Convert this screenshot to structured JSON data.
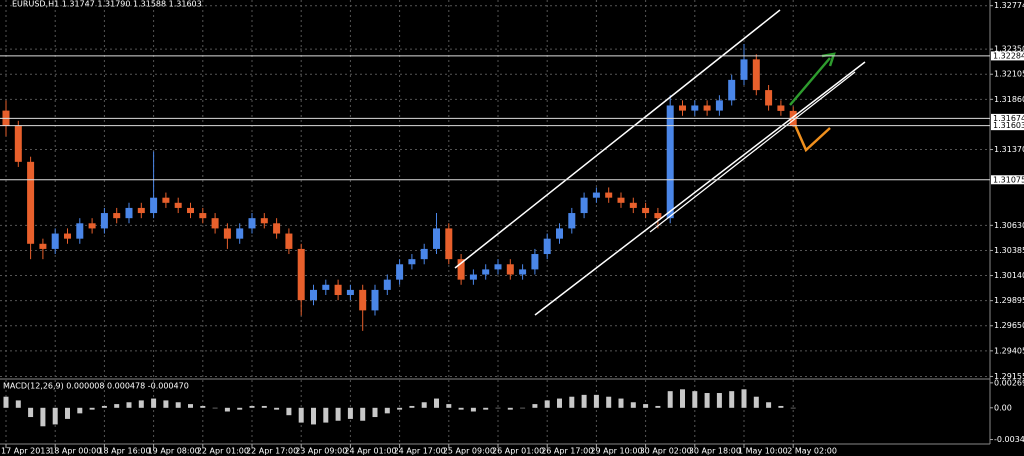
{
  "chart_data": {
    "type": "candlestick",
    "title": "EURUSD,H1 1.31747 1.31790 1.31588 1.31603",
    "categories": [
      "17 Apr 2013",
      null,
      null,
      null,
      "18 Apr 00:00",
      null,
      null,
      null,
      "18 Apr 16:00",
      null,
      null,
      null,
      "19 Apr 08:00",
      null,
      null,
      null,
      "22 Apr 01:00",
      null,
      null,
      null,
      "22 Apr 17:00",
      null,
      null,
      null,
      "23 Apr 09:00",
      null,
      null,
      null,
      "24 Apr 01:00",
      null,
      null,
      null,
      "24 Apr 17:00",
      null,
      null,
      null,
      "25 Apr 09:00",
      null,
      null,
      null,
      "26 Apr 01:00",
      null,
      null,
      null,
      "26 Apr 17:00",
      null,
      null,
      null,
      "29 Apr 10:00",
      null,
      null,
      null,
      "30 Apr 02:00",
      null,
      null,
      null,
      "30 Apr 18:00",
      null,
      null,
      null,
      "1 May 10:00",
      null,
      null,
      null,
      "2 May 02:00"
    ],
    "open": [
      1.3175,
      1.316,
      1.3125,
      1.3045,
      1.304,
      1.3055,
      1.305,
      1.3065,
      1.306,
      1.3075,
      1.307,
      1.308,
      1.3075,
      1.309,
      1.3085,
      1.308,
      1.3075,
      1.307,
      1.306,
      1.305,
      1.306,
      1.307,
      1.3065,
      1.3055,
      1.304,
      1.299,
      1.3,
      1.3005,
      1.2995,
      1.3,
      1.298,
      1.3,
      1.301,
      1.3025,
      1.303,
      1.304,
      1.306,
      1.303,
      1.301,
      1.3015,
      1.302,
      1.3025,
      1.3015,
      1.302,
      1.3035,
      1.305,
      1.306,
      1.3075,
      1.309,
      1.3095,
      1.309,
      1.3085,
      1.308,
      1.3075,
      1.307,
      1.318,
      1.3175,
      1.318,
      1.3175,
      1.3185,
      1.3205,
      1.3225,
      1.3195,
      1.318,
      1.31747
    ],
    "high": [
      1.3185,
      1.3165,
      1.313,
      1.305,
      1.306,
      1.306,
      1.307,
      1.307,
      1.308,
      1.308,
      1.3085,
      1.3085,
      1.3135,
      1.3095,
      1.309,
      1.3085,
      1.308,
      1.3075,
      1.3065,
      1.3065,
      1.3075,
      1.3075,
      1.307,
      1.306,
      1.3045,
      1.3005,
      1.301,
      1.301,
      1.3005,
      1.3005,
      1.3005,
      1.3015,
      1.303,
      1.3035,
      1.3045,
      1.3075,
      1.3065,
      1.3035,
      1.302,
      1.3025,
      1.303,
      1.303,
      1.3025,
      1.304,
      1.3055,
      1.3065,
      1.308,
      1.3095,
      1.31,
      1.31,
      1.3095,
      1.309,
      1.3085,
      1.308,
      1.319,
      1.3185,
      1.3185,
      1.3185,
      1.319,
      1.321,
      1.324,
      1.323,
      1.32,
      1.3185,
      1.3179
    ],
    "low": [
      1.315,
      1.312,
      1.303,
      1.303,
      1.3035,
      1.3045,
      1.3045,
      1.3055,
      1.3055,
      1.3065,
      1.3065,
      1.307,
      1.307,
      1.308,
      1.3075,
      1.307,
      1.3065,
      1.3055,
      1.304,
      1.3045,
      1.3055,
      1.306,
      1.305,
      1.3035,
      1.2975,
      1.2985,
      1.2995,
      1.299,
      1.299,
      1.296,
      1.2975,
      1.2995,
      1.3005,
      1.302,
      1.3025,
      1.3035,
      1.3025,
      1.3005,
      1.3005,
      1.301,
      1.3015,
      1.301,
      1.301,
      1.3015,
      1.303,
      1.3045,
      1.3055,
      1.307,
      1.3085,
      1.3085,
      1.308,
      1.3075,
      1.307,
      1.306,
      1.3065,
      1.317,
      1.317,
      1.317,
      1.317,
      1.318,
      1.32,
      1.319,
      1.3175,
      1.317,
      1.31588
    ],
    "close": [
      1.316,
      1.3125,
      1.3045,
      1.304,
      1.3055,
      1.305,
      1.3065,
      1.306,
      1.3075,
      1.307,
      1.308,
      1.3075,
      1.309,
      1.3085,
      1.308,
      1.3075,
      1.307,
      1.306,
      1.305,
      1.306,
      1.307,
      1.3065,
      1.3055,
      1.304,
      1.299,
      1.3,
      1.3005,
      1.2995,
      1.3,
      1.298,
      1.3,
      1.301,
      1.3025,
      1.303,
      1.304,
      1.306,
      1.303,
      1.301,
      1.3015,
      1.302,
      1.3025,
      1.3015,
      1.302,
      1.3035,
      1.305,
      1.306,
      1.3075,
      1.309,
      1.3095,
      1.309,
      1.3085,
      1.308,
      1.3075,
      1.307,
      1.318,
      1.3175,
      1.318,
      1.3175,
      1.3185,
      1.3205,
      1.3225,
      1.3195,
      1.318,
      1.31747,
      1.31603
    ],
    "up_color": "#4a86e8",
    "down_color": "#e8602c",
    "ylim": [
      1.2914,
      1.3281
    ],
    "yticks": [
      1.32774,
      {
        "value": 1.3235,
        "label": "1.32350"
      },
      1.32105,
      {
        "value": 1.3186,
        "label": "1.31860"
      },
      {
        "value": 1.3137,
        "label": "1.31370"
      },
      {
        "value": 1.3063,
        "label": "1.30630"
      },
      1.30385,
      {
        "value": 1.3014,
        "label": "1.30140"
      },
      1.29895,
      {
        "value": 1.2965,
        "label": "1.29650"
      },
      1.29405,
      1.29155
    ],
    "levels": [
      1.32284,
      1.31674,
      1.31603,
      1.31075
    ],
    "grid": true,
    "macd": {
      "title": "MACD(12,26,9) 0.000008 0.000478 -0.000470",
      "color": "#c8c8c8",
      "values": [
        0.0012,
        0.0008,
        -0.001,
        -0.002,
        -0.0018,
        -0.0012,
        -0.0006,
        -0.0002,
        0.0002,
        0.0004,
        0.0006,
        0.0008,
        0.001,
        0.0008,
        0.0006,
        0.0004,
        0.0002,
        0.0,
        -0.0004,
        -0.0002,
        0.0002,
        0.0002,
        -0.0002,
        -0.0008,
        -0.0016,
        -0.0018,
        -0.0016,
        -0.0014,
        -0.0012,
        -0.0014,
        -0.001,
        -0.0006,
        -0.0002,
        0.0002,
        0.0006,
        0.001,
        0.0004,
        -0.0002,
        -0.0004,
        -0.0002,
        0.0,
        -0.0002,
        0.0,
        0.0004,
        0.0008,
        0.001,
        0.0012,
        0.0014,
        0.0014,
        0.0012,
        0.001,
        0.0006,
        0.0004,
        0.0002,
        0.0018,
        0.002,
        0.0018,
        0.0016,
        0.0016,
        0.0018,
        0.002,
        0.0012,
        0.0006,
        0.0002,
        0.0
      ],
      "ylim": [
        -0.0037,
        0.0029
      ],
      "yticks": [
        0.002699,
        {
          "value": 0,
          "label": "0.00"
        },
        -0.003434
      ]
    }
  }
}
